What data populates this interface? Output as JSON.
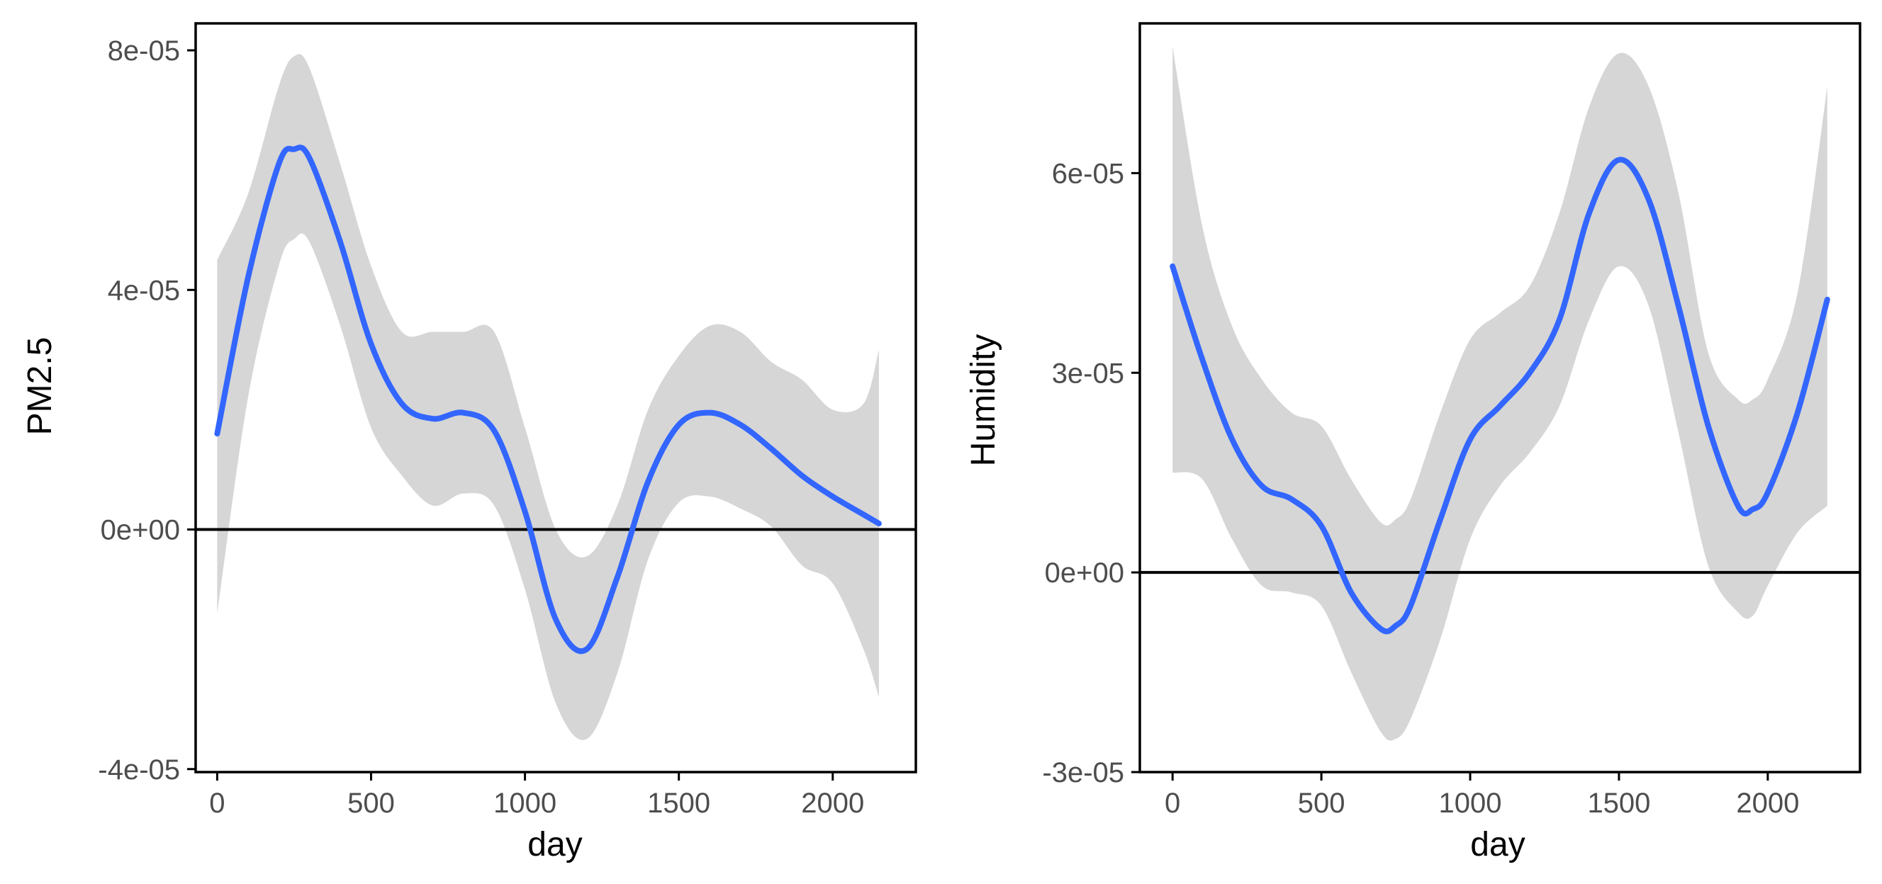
{
  "colors": {
    "line": "#3366FF",
    "ribbon": "#D6D6D6",
    "axis": "#000000",
    "tick_text": "#4D4D4D",
    "background": "#FFFFFF"
  },
  "chart_data": [
    {
      "type": "line",
      "title": "",
      "xlabel": "day",
      "ylabel": "PM2.5",
      "xlim": [
        -70,
        2270
      ],
      "ylim": [
        -4.05e-05,
        8.45e-05
      ],
      "x_ticks": [
        0,
        500,
        1000,
        1500,
        2000
      ],
      "x_tick_labels": [
        "0",
        "500",
        "1000",
        "1500",
        "2000"
      ],
      "y_ticks": [
        -4e-05,
        0,
        4e-05,
        8e-05
      ],
      "y_tick_labels": [
        "-4e-05",
        "0e+00",
        "4e-05",
        "8e-05"
      ],
      "hline": 0,
      "grid": false,
      "legend": "none",
      "series": [
        {
          "x": [
            0,
            100,
            200,
            250,
            300,
            400,
            500,
            600,
            700,
            800,
            900,
            1000,
            1100,
            1200,
            1300,
            1400,
            1500,
            1600,
            1700,
            1800,
            1900,
            2000,
            2100,
            2150
          ],
          "y": [
            1.6e-05,
            4.2e-05,
            6.1e-05,
            6.35e-05,
            6.2e-05,
            4.8e-05,
            3.1e-05,
            2.1e-05,
            1.85e-05,
            1.95e-05,
            1.65e-05,
            3e-06,
            -1.5e-05,
            -2e-05,
            -8e-06,
            8e-06,
            1.75e-05,
            1.95e-05,
            1.75e-05,
            1.35e-05,
            9e-06,
            5.5e-06,
            2.5e-06,
            1e-06
          ],
          "lower": [
            -1.4e-05,
            2.2e-05,
            4.4e-05,
            4.85e-05,
            4.8e-05,
            3.4e-05,
            1.7e-05,
            9e-06,
            4e-06,
            6e-06,
            4e-06,
            -1e-05,
            -2.9e-05,
            -3.5e-05,
            -2.4e-05,
            -5e-06,
            4.5e-06,
            5.5e-06,
            3.5e-06,
            5e-07,
            -6e-06,
            -9e-06,
            -2e-05,
            -2.8e-05
          ],
          "upper": [
            4.5e-05,
            5.6e-05,
            7.4e-05,
            7.9e-05,
            7.7e-05,
            6.1e-05,
            4.4e-05,
            3.3e-05,
            3.3e-05,
            3.3e-05,
            3.3e-05,
            1.7e-05,
            0,
            -4.5e-06,
            4e-06,
            2e-05,
            2.9e-05,
            3.4e-05,
            3.3e-05,
            2.8e-05,
            2.5e-05,
            2e-05,
            2.1e-05,
            3e-05
          ]
        }
      ]
    },
    {
      "type": "line",
      "title": "",
      "xlabel": "day",
      "ylabel": "Humidity",
      "xlim": [
        -110,
        2310
      ],
      "ylim": [
        -3e-05,
        8.25e-05
      ],
      "x_ticks": [
        0,
        500,
        1000,
        1500,
        2000
      ],
      "x_tick_labels": [
        "0",
        "500",
        "1000",
        "1500",
        "2000"
      ],
      "y_ticks": [
        -3e-05,
        0,
        3e-05,
        6e-05
      ],
      "y_tick_labels": [
        "-3e-05",
        "0e+00",
        "3e-05",
        "6e-05"
      ],
      "hline": 0,
      "grid": false,
      "legend": "none",
      "series": [
        {
          "x": [
            0,
            100,
            200,
            300,
            400,
            500,
            600,
            700,
            750,
            800,
            900,
            1000,
            1100,
            1200,
            1300,
            1400,
            1500,
            1600,
            1700,
            1800,
            1900,
            1950,
            2000,
            2100,
            2200
          ],
          "y": [
            4.6e-05,
            3.2e-05,
            2e-05,
            1.3e-05,
            1.1e-05,
            7e-06,
            -3e-06,
            -8.5e-06,
            -8e-06,
            -5e-06,
            8e-06,
            2e-05,
            2.5e-05,
            3e-05,
            3.8e-05,
            5.4e-05,
            6.2e-05,
            5.6e-05,
            4e-05,
            2.2e-05,
            1e-05,
            9.5e-06,
            1.2e-05,
            2.4e-05,
            4.1e-05
          ],
          "lower": [
            1.5e-05,
            1.4e-05,
            5e-06,
            -2e-06,
            -3e-06,
            -5e-06,
            -1.5e-05,
            -2.4e-05,
            -2.5e-05,
            -2.2e-05,
            -1e-05,
            5e-06,
            1.3e-05,
            1.8e-05,
            2.5e-05,
            3.8e-05,
            4.6e-05,
            4e-05,
            2.1e-05,
            1e-06,
            -6e-06,
            -6.5e-06,
            -2e-06,
            6e-06,
            1e-05
          ],
          "upper": [
            7.9e-05,
            5.2e-05,
            3.7e-05,
            2.9e-05,
            2.4e-05,
            2.2e-05,
            1.4e-05,
            7.5e-06,
            8e-06,
            1.1e-05,
            2.4e-05,
            3.5e-05,
            3.9e-05,
            4.3e-05,
            5.4e-05,
            7e-05,
            7.8e-05,
            7.3e-05,
            5.7e-05,
            3.3e-05,
            2.6e-05,
            2.6e-05,
            2.9e-05,
            4.2e-05,
            7.3e-05
          ]
        }
      ]
    }
  ]
}
